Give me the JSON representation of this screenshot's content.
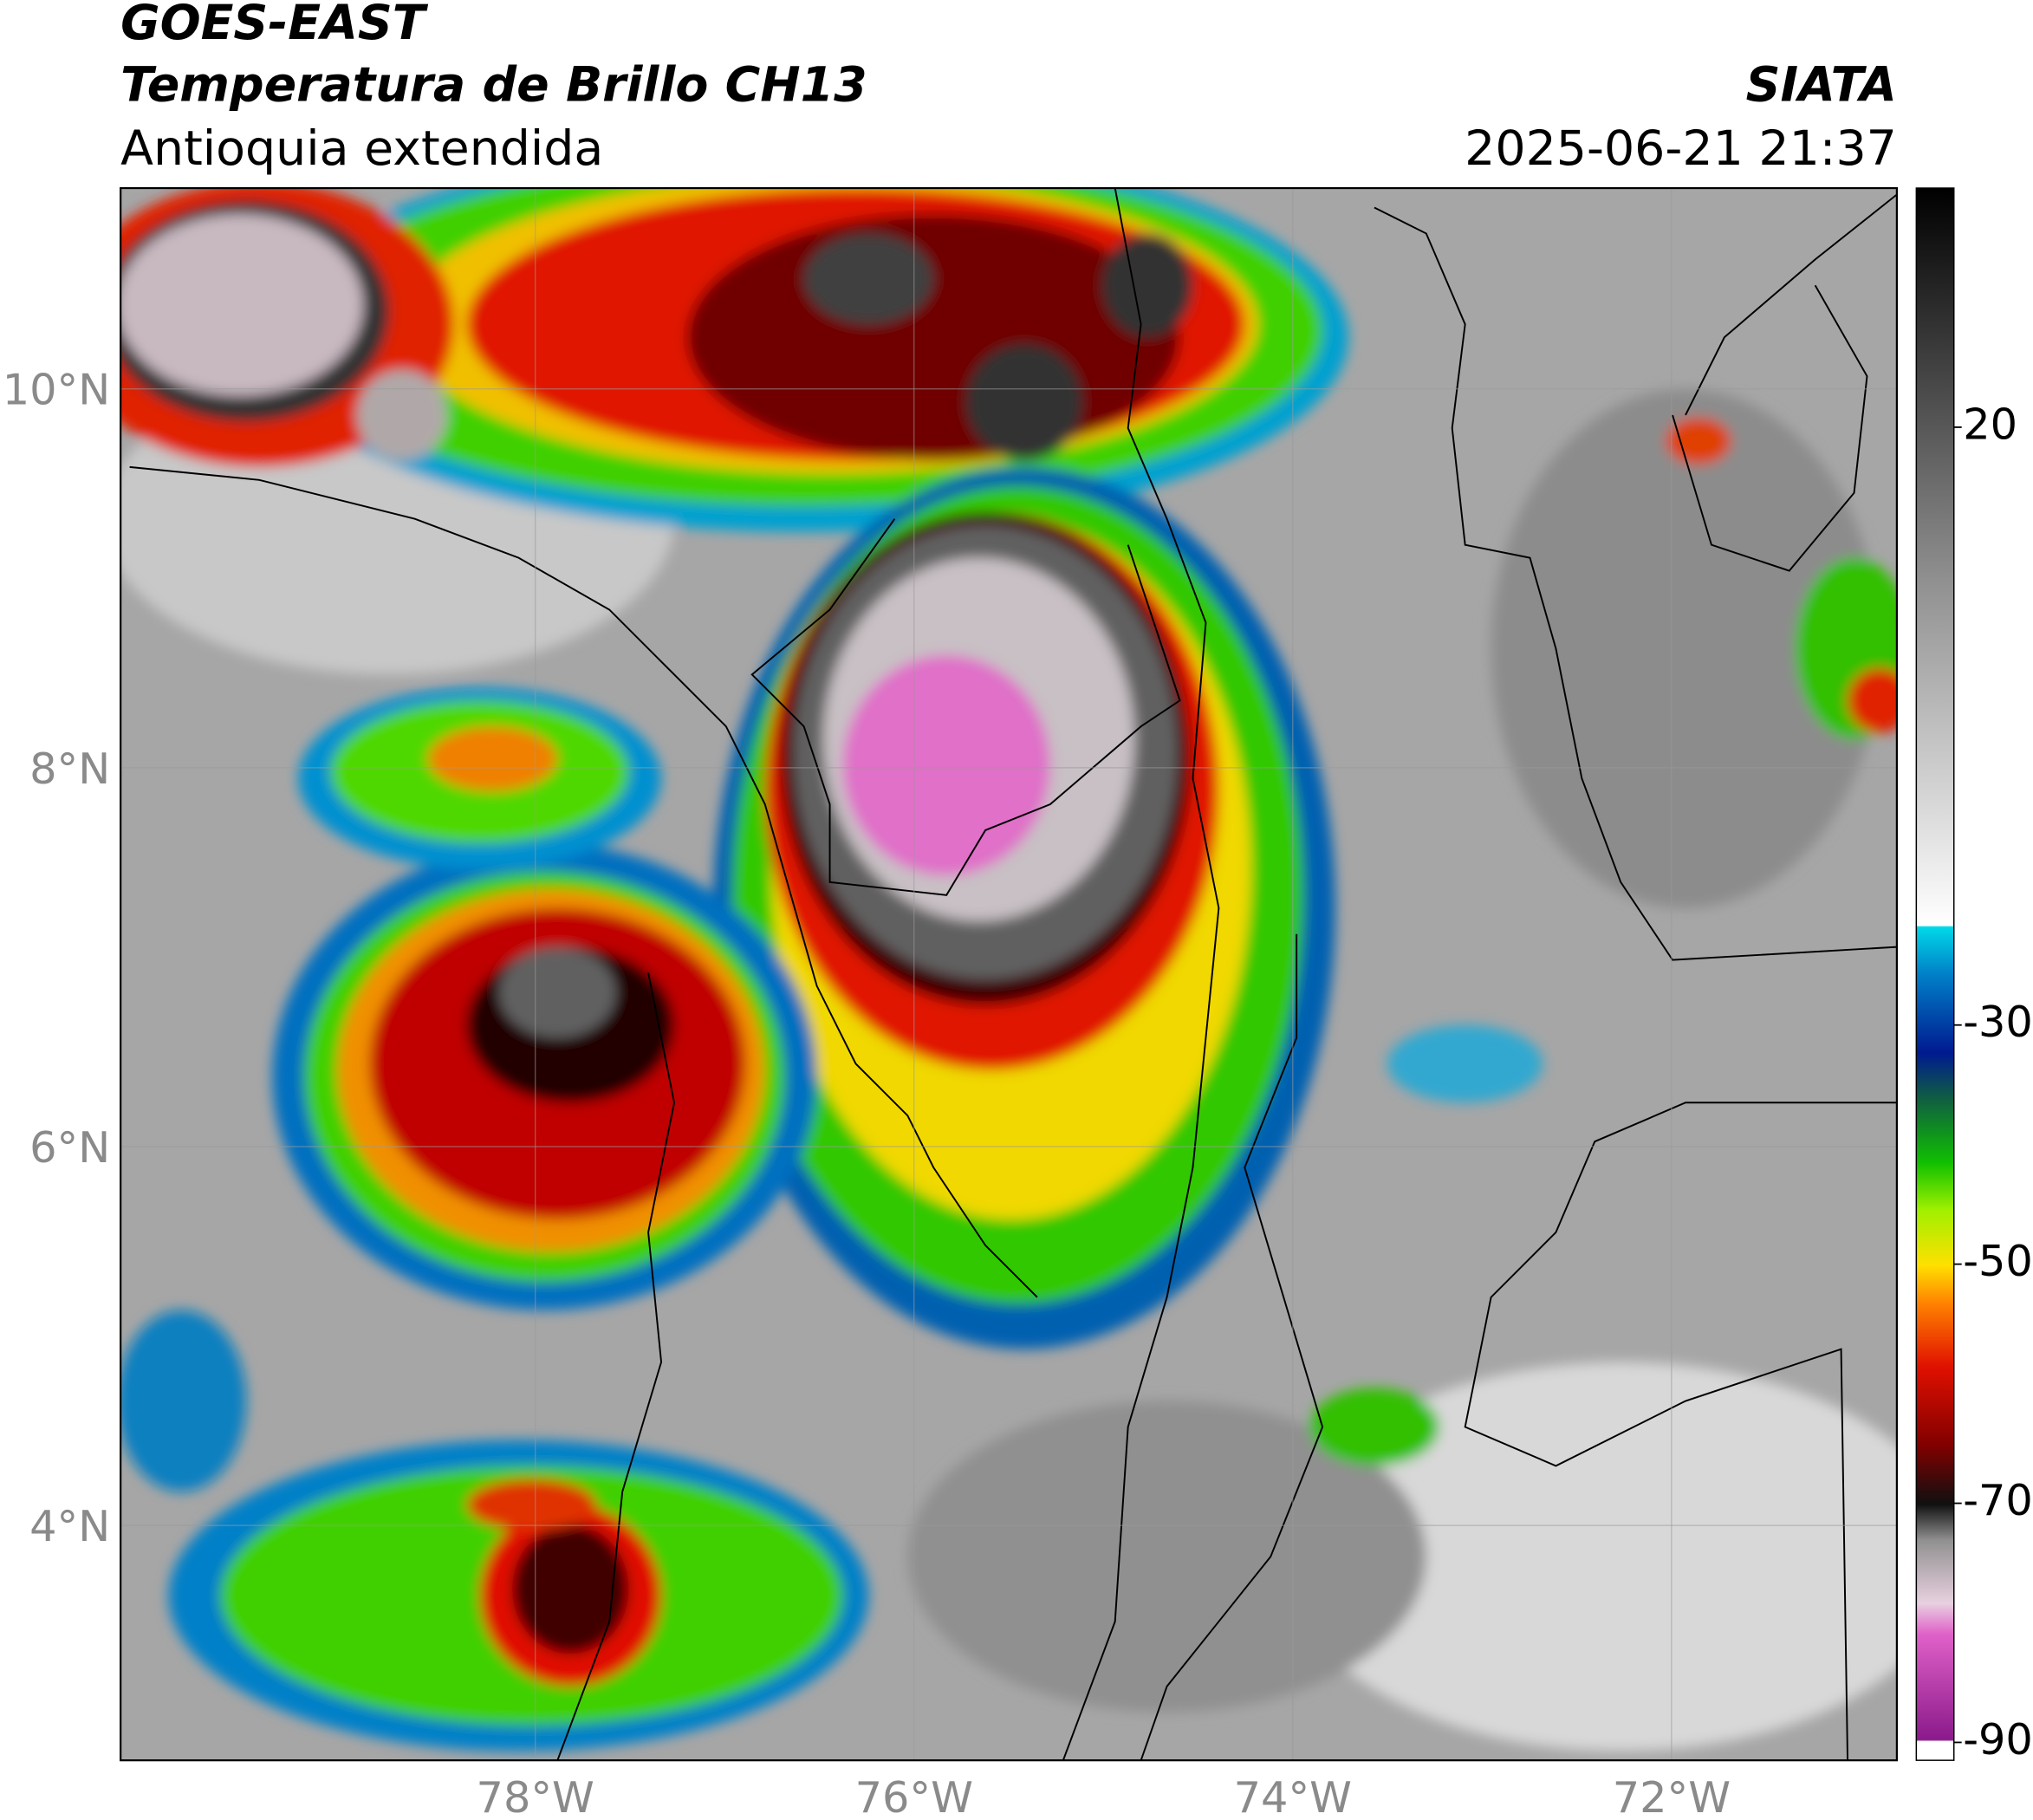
{
  "chart_data": {
    "type": "map",
    "title": "GOES-EAST",
    "subtitle": "Temperatura de Brillo CH13",
    "region": "Antioquia extendida",
    "source": "SIATA",
    "datetime": "2025-06-21 21:37",
    "xlim": [
      -80.19,
      -70.81
    ],
    "ylim": [
      2.76,
      11.06
    ],
    "xticks": [
      {
        "value": -78,
        "label": "78°W"
      },
      {
        "value": -76,
        "label": "76°W"
      },
      {
        "value": -74,
        "label": "74°W"
      },
      {
        "value": -72,
        "label": "72°W"
      }
    ],
    "yticks": [
      {
        "value": 4,
        "label": "4°N"
      },
      {
        "value": 6,
        "label": "6°N"
      },
      {
        "value": 8,
        "label": "8°N"
      },
      {
        "value": 10,
        "label": "10°N"
      }
    ],
    "grid": true,
    "colorbar": {
      "lim": [
        -91.5,
        40
      ],
      "ticks": [
        20,
        -30,
        -50,
        -70,
        -90
      ]
    }
  }
}
